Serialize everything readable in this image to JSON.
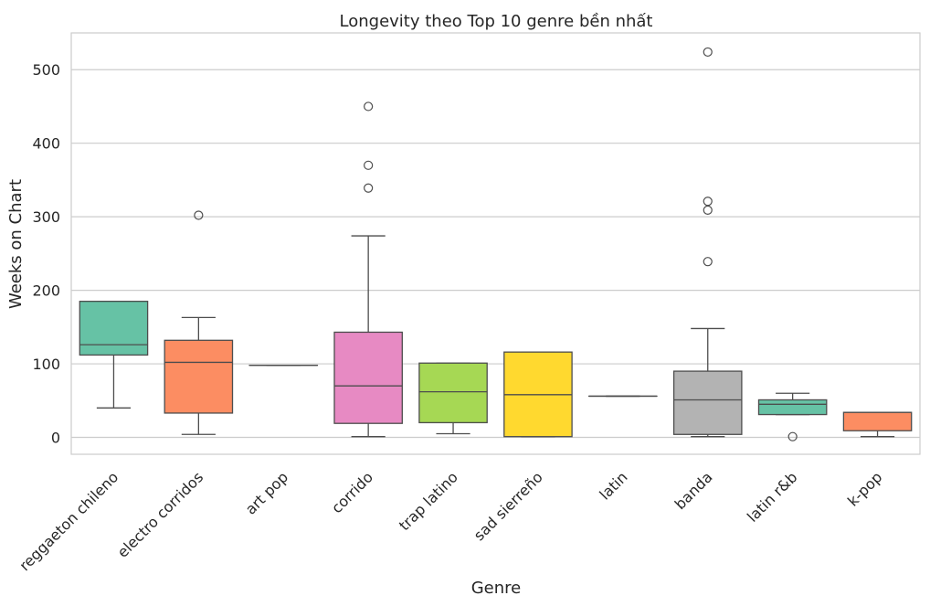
{
  "chart_data": {
    "type": "box",
    "title": "Longevity theo Top 10 genre bền nhất",
    "xlabel": "Genre",
    "ylabel": "Weeks on Chart",
    "ylim": [
      -23,
      550
    ],
    "yticks": [
      0,
      100,
      200,
      300,
      400,
      500
    ],
    "grid": "horizontal",
    "categories": [
      "reggaeton chileno",
      "electro corridos",
      "art pop",
      "corrido",
      "trap latino",
      "sad sierreño",
      "latin",
      "banda",
      "latin r&b",
      "k-pop"
    ],
    "colors": [
      "#66c2a5",
      "#fc8d62",
      "#8da0cb",
      "#e78ac3",
      "#a6d854",
      "#ffd92f",
      "#e5c494",
      "#b3b3b3",
      "#66c2a5",
      "#fc8d62"
    ],
    "boxes": [
      {
        "min": 40,
        "q1": 112,
        "median": 126,
        "q3": 185,
        "max": 185,
        "outliers": []
      },
      {
        "min": 4,
        "q1": 33,
        "median": 102,
        "q3": 132,
        "max": 163,
        "outliers": [
          302
        ]
      },
      {
        "min": 98,
        "q1": 98,
        "median": 98,
        "q3": 98,
        "max": 98,
        "outliers": []
      },
      {
        "min": 1,
        "q1": 19,
        "median": 70,
        "q3": 143,
        "max": 274,
        "outliers": [
          339,
          370,
          450
        ]
      },
      {
        "min": 5,
        "q1": 20,
        "median": 62,
        "q3": 101,
        "max": 101,
        "outliers": []
      },
      {
        "min": 1,
        "q1": 1,
        "median": 58,
        "q3": 116,
        "max": 116,
        "outliers": []
      },
      {
        "min": 56,
        "q1": 56,
        "median": 56,
        "q3": 56,
        "max": 56,
        "outliers": []
      },
      {
        "min": 1,
        "q1": 4,
        "median": 51,
        "q3": 90,
        "max": 148,
        "outliers": [
          239,
          309,
          321,
          524
        ]
      },
      {
        "min": 31,
        "q1": 31,
        "median": 45,
        "q3": 51,
        "max": 60,
        "outliers": [
          1
        ]
      },
      {
        "min": 1,
        "q1": 9,
        "median": 34,
        "q3": 34,
        "max": 34,
        "outliers": []
      }
    ]
  }
}
